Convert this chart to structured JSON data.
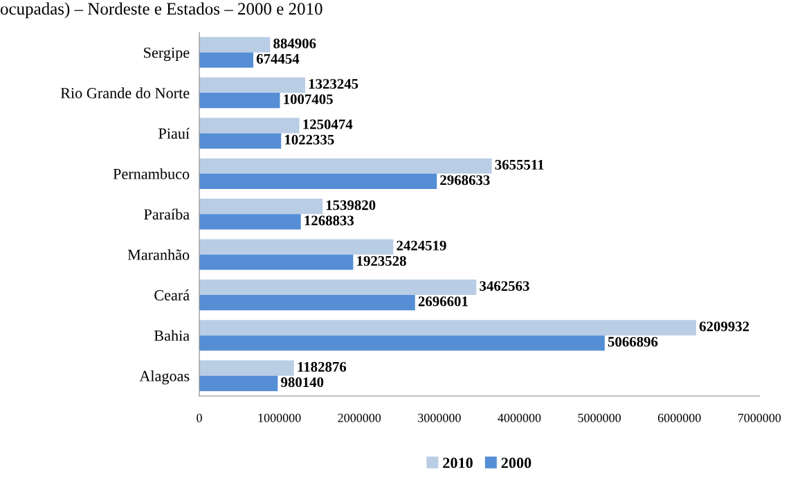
{
  "chart_data": {
    "type": "bar",
    "orientation": "horizontal",
    "title": "ocupadas) – Nordeste e Estados – 2000 e 2010",
    "categories": [
      "Sergipe",
      "Rio Grande do Norte",
      "Piauí",
      "Pernambuco",
      "Paraíba",
      "Maranhão",
      "Ceará",
      "Bahia",
      "Alagoas"
    ],
    "series": [
      {
        "name": "2010",
        "color": "#b9cde5",
        "values": [
          884906,
          1323245,
          1250474,
          3655511,
          1539820,
          2424519,
          3462563,
          6209932,
          1182876
        ]
      },
      {
        "name": "2000",
        "color": "#558ed5",
        "values": [
          674454,
          1007405,
          1022335,
          2968633,
          1268833,
          1923528,
          2696601,
          5066896,
          980140
        ]
      }
    ],
    "xlim": [
      0,
      7000000
    ],
    "xticks": [
      0,
      1000000,
      2000000,
      3000000,
      4000000,
      5000000,
      6000000,
      7000000
    ],
    "data_labels": true,
    "legend": "bottom",
    "grid": false
  }
}
